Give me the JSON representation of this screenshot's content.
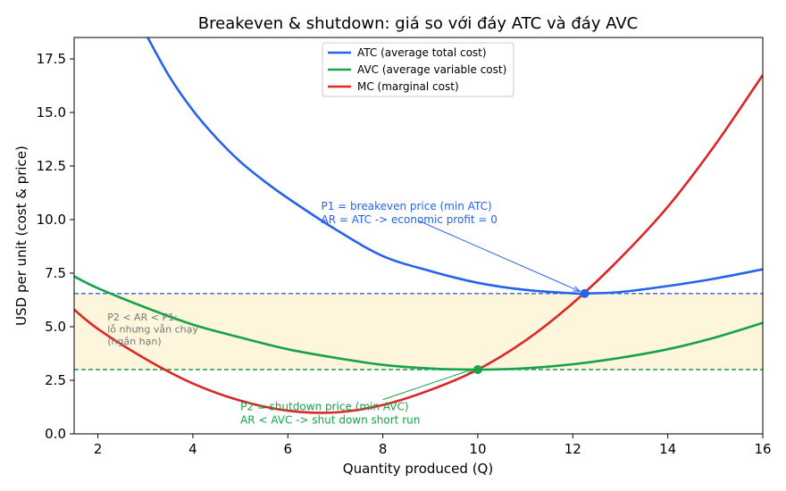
{
  "chart_data": {
    "type": "line",
    "title": "Breakeven & shutdown: giá so với đáy ATC và đáy AVC",
    "xlabel": "Quantity produced (Q)",
    "ylabel": "USD per unit (cost & price)",
    "xlim": [
      1.5,
      16
    ],
    "ylim": [
      0,
      18.5
    ],
    "xticks": [
      2,
      4,
      6,
      8,
      10,
      12,
      14,
      16
    ],
    "xtick_labels": [
      "2",
      "4",
      "6",
      "8",
      "10",
      "12",
      "14",
      "16"
    ],
    "yticks": [
      0,
      2.5,
      5,
      7.5,
      10,
      12.5,
      15,
      17.5
    ],
    "ytick_labels": [
      "0.0",
      "2.5",
      "5.0",
      "7.5",
      "10.0",
      "12.5",
      "15.0",
      "17.5"
    ],
    "grid": false,
    "legend_position": "top-center",
    "series": [
      {
        "name": "ATC (average total cost)",
        "color": "#2563eb",
        "x": [
          3.0,
          3.5,
          4.0,
          4.5,
          5.0,
          5.5,
          6.0,
          7.0,
          8.0,
          9.0,
          10.0,
          11.0,
          12.0,
          12.25,
          13.0,
          14.0,
          15.0,
          16.0
        ],
        "y": [
          18.7,
          16.7,
          15.1,
          13.8,
          12.7,
          11.8,
          11.0,
          9.55,
          8.3,
          7.6,
          7.05,
          6.72,
          6.56,
          6.55,
          6.62,
          6.9,
          7.25,
          7.68
        ]
      },
      {
        "name": "AVC (average variable cost)",
        "color": "#16a34a",
        "x": [
          1.5,
          2.0,
          3.0,
          4.0,
          5.0,
          6.0,
          7.0,
          8.0,
          9.0,
          10.0,
          11.0,
          12.0,
          13.0,
          14.0,
          15.0,
          16.0
        ],
        "y": [
          7.35,
          6.8,
          5.9,
          5.1,
          4.5,
          3.95,
          3.55,
          3.22,
          3.05,
          3.0,
          3.06,
          3.25,
          3.55,
          3.95,
          4.5,
          5.18
        ]
      },
      {
        "name": "MC (marginal cost)",
        "color": "#dc2626",
        "x": [
          1.5,
          2.0,
          3.0,
          4.0,
          5.0,
          6.0,
          7.0,
          8.0,
          9.0,
          10.0,
          11.0,
          12.0,
          13.0,
          14.0,
          15.0,
          16.0
        ],
        "y": [
          5.8,
          4.9,
          3.5,
          2.35,
          1.55,
          1.08,
          1.0,
          1.35,
          2.05,
          3.0,
          4.35,
          6.1,
          8.2,
          10.6,
          13.5,
          16.75
        ]
      }
    ],
    "reference_lines": [
      {
        "y": 6.55,
        "color": "#2563eb",
        "style": "dashed"
      },
      {
        "y": 3.0,
        "color": "#16a34a",
        "style": "dashed"
      }
    ],
    "shaded_band": {
      "y_from": 3.0,
      "y_to": 6.55,
      "color": "#fdf6dc"
    },
    "markers": [
      {
        "x": 12.25,
        "y": 6.55,
        "color": "#2563eb"
      },
      {
        "x": 10.0,
        "y": 3.0,
        "color": "#16a34a"
      }
    ],
    "annotations": [
      {
        "lines": [
          "P1 = breakeven price (min ATC)",
          "AR = ATC -> economic profit = 0"
        ],
        "text_x": 6.7,
        "text_y": 10.45,
        "arrow_from": [
          8.75,
          9.95
        ],
        "arrow_to": [
          12.15,
          6.65
        ],
        "color": "#2563eb",
        "style": "ann"
      },
      {
        "lines": [
          "P2 = shutdown price (min AVC)",
          "AR < AVC -> shut down short run"
        ],
        "text_x": 5.0,
        "text_y": 1.1,
        "arrow_from": [
          8.0,
          1.6
        ],
        "arrow_to": [
          9.9,
          3.02
        ],
        "color": "#16a34a",
        "style": "ann"
      },
      {
        "lines": [
          "P2 < AR < P1:",
          "lỗ nhưng vẫn chạy",
          "(ngắn hạn)"
        ],
        "text_x": 2.2,
        "text_y": 5.3,
        "color": "#777777",
        "style": "ann-gray"
      }
    ]
  }
}
